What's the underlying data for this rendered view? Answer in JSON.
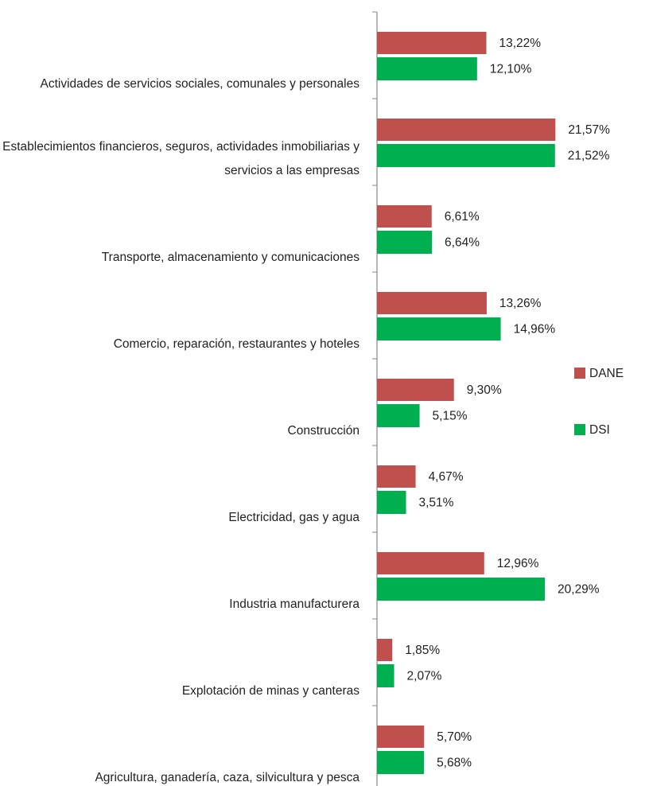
{
  "chart_data": {
    "type": "bar",
    "orientation": "horizontal",
    "categories": [
      "Actividades de servicios sociales, comunales y personales",
      "Establecimientos financieros, seguros, actividades inmobiliarias y servicios a las empresas",
      "Transporte, almacenamiento y comunicaciones",
      "Comercio, reparación, restaurantes y hoteles",
      "Construcción",
      "Electricidad, gas y agua",
      "Industria manufacturera",
      "Explotación de minas y canteras",
      "Agricultura, ganadería, caza, silvicultura y pesca"
    ],
    "series": [
      {
        "name": "DANE",
        "color": "#c0504d",
        "values": [
          13.22,
          21.57,
          6.61,
          13.26,
          9.3,
          4.67,
          12.96,
          1.85,
          5.7
        ],
        "value_labels": [
          "13,22%",
          "21,57%",
          "6,61%",
          "13,26%",
          "9,30%",
          "4,67%",
          "12,96%",
          "1,85%",
          "5,70%"
        ]
      },
      {
        "name": "DSI",
        "color": "#00b050",
        "values": [
          12.1,
          21.52,
          6.64,
          14.96,
          5.15,
          3.51,
          20.29,
          2.07,
          5.68
        ],
        "value_labels": [
          "12,10%",
          "21,52%",
          "6,64%",
          "14,96%",
          "5,15%",
          "3,51%",
          "20,29%",
          "2,07%",
          "5,68%"
        ]
      }
    ],
    "legend": "right"
  }
}
